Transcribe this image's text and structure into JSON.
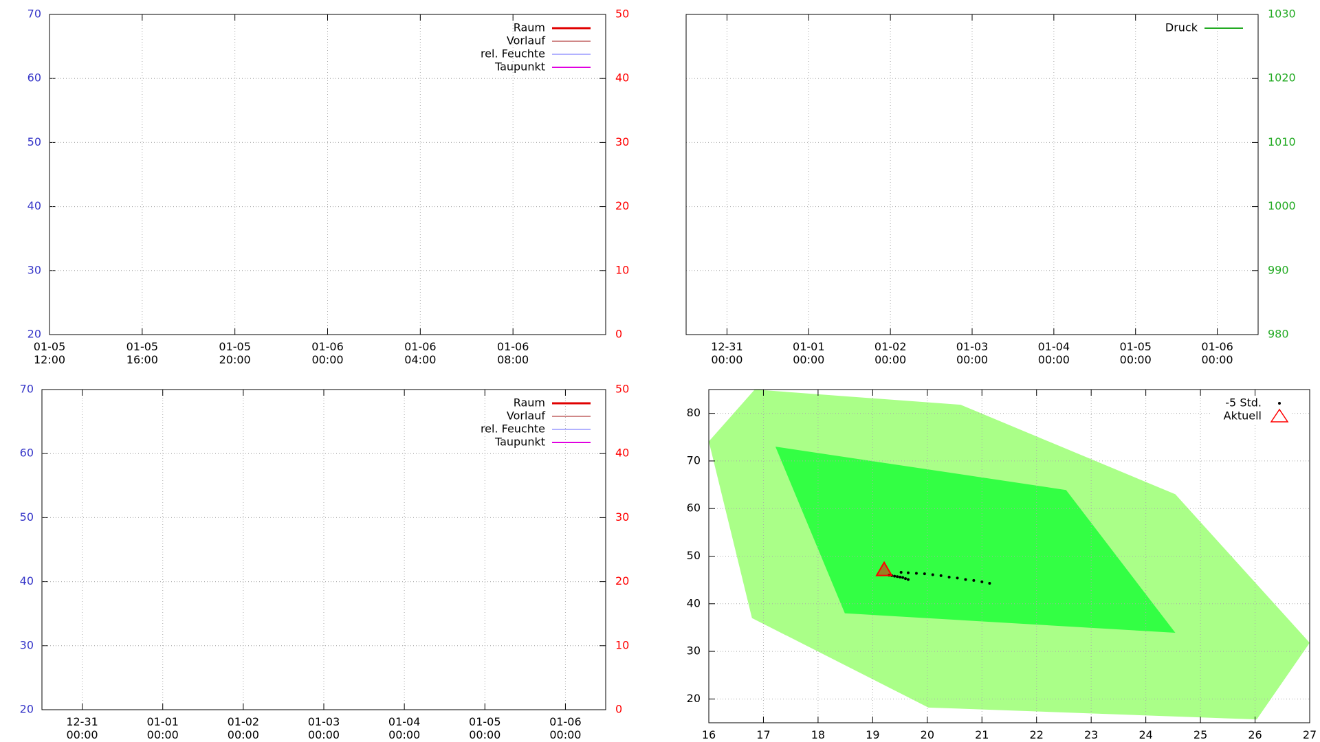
{
  "chart_data": [
    {
      "type": "line",
      "xlim": [
        "01-05 12:00",
        "01-06 12:00"
      ],
      "xticks": [
        "01-05\n12:00",
        "01-05\n16:00",
        "01-05\n20:00",
        "01-06\n00:00",
        "01-06\n04:00",
        "01-06\n08:00"
      ],
      "ylim": [
        20,
        70
      ],
      "yticks": [
        20,
        30,
        40,
        50,
        60,
        70
      ],
      "ytick_color": "#3535c8",
      "y2lim": [
        0,
        50
      ],
      "y2ticks": [
        0,
        10,
        20,
        30,
        40,
        50
      ],
      "y2tick_color": "#ff0000",
      "grid": true,
      "legend": "upper right",
      "series": [
        {
          "name": "Raum",
          "color": "#e00000",
          "width": 3,
          "axis": "y2",
          "x": [],
          "values": []
        },
        {
          "name": "Vorlauf",
          "color": "#a01010",
          "width": 1,
          "axis": "y2",
          "x": [],
          "values": []
        },
        {
          "name": "rel. Feuchte",
          "color": "#9999ff",
          "width": 1.5,
          "x": [],
          "values": []
        },
        {
          "name": "Taupunkt",
          "color": "#e000e0",
          "width": 2,
          "axis": "y2",
          "x": [],
          "values": []
        }
      ]
    },
    {
      "type": "line",
      "xlim": [
        "12-30 12:00",
        "01-06 12:00"
      ],
      "xticks": [
        "12-31\n00:00",
        "01-01\n00:00",
        "01-02\n00:00",
        "01-03\n00:00",
        "01-04\n00:00",
        "01-05\n00:00",
        "01-06\n00:00"
      ],
      "y2lim": [
        980,
        1030
      ],
      "y2ticks": [
        980,
        990,
        1000,
        1010,
        1020,
        1030
      ],
      "y2tick_color": "#22aa22",
      "grid": true,
      "legend": "upper right",
      "series": [
        {
          "name": "Druck",
          "color": "#22aa22",
          "width": 2,
          "axis": "y2",
          "x": [],
          "values": []
        }
      ]
    },
    {
      "type": "line",
      "xlim": [
        "12-30 12:00",
        "01-06 12:00"
      ],
      "xticks": [
        "12-31\n00:00",
        "01-01\n00:00",
        "01-02\n00:00",
        "01-03\n00:00",
        "01-04\n00:00",
        "01-05\n00:00",
        "01-06\n00:00"
      ],
      "ylim": [
        20,
        70
      ],
      "yticks": [
        20,
        30,
        40,
        50,
        60,
        70
      ],
      "ytick_color": "#3535c8",
      "y2lim": [
        0,
        50
      ],
      "y2ticks": [
        0,
        10,
        20,
        30,
        40,
        50
      ],
      "y2tick_color": "#ff0000",
      "grid": true,
      "legend": "upper right",
      "series": [
        {
          "name": "Raum",
          "color": "#e00000",
          "width": 3,
          "axis": "y2",
          "x": [],
          "values": []
        },
        {
          "name": "Vorlauf",
          "color": "#a01010",
          "width": 1,
          "axis": "y2",
          "x": [],
          "values": []
        },
        {
          "name": "rel. Feuchte",
          "color": "#9999ff",
          "width": 1.5,
          "x": [],
          "values": []
        },
        {
          "name": "Taupunkt",
          "color": "#e000e0",
          "width": 2,
          "axis": "y2",
          "x": [],
          "values": []
        }
      ]
    },
    {
      "type": "scatter",
      "xlim": [
        16,
        27
      ],
      "xticks": [
        16,
        17,
        18,
        19,
        20,
        21,
        22,
        23,
        24,
        25,
        26,
        27
      ],
      "ylim": [
        15,
        85
      ],
      "yticks": [
        20,
        30,
        40,
        50,
        60,
        70,
        80
      ],
      "ytick_color": "#000000",
      "grid": true,
      "legend": "upper right",
      "regions": [
        {
          "color": "#aaff88",
          "x": [
            16,
            16.84,
            20.61,
            24.54,
            27,
            26.03,
            20.02,
            16.79
          ],
          "y": [
            74.1,
            85,
            81.8,
            63.0,
            31.8,
            15.7,
            18.2,
            37.0
          ]
        },
        {
          "color": "#33ff44",
          "x": [
            17.22,
            22.54,
            24.54,
            18.49
          ],
          "y": [
            73.0,
            63.9,
            33.9,
            38.0
          ]
        }
      ],
      "series": [
        {
          "name": "-5 Std.",
          "color": "#000000",
          "marker": "dot",
          "x": [
            19.3,
            19.35,
            19.4,
            19.45,
            19.5,
            19.55,
            19.6,
            19.65,
            19.52,
            19.65,
            19.8,
            19.95,
            20.1,
            20.25,
            20.4,
            20.55,
            20.7,
            20.85,
            21.0,
            21.14
          ],
          "values": [
            46.0,
            45.9,
            45.8,
            45.7,
            45.6,
            45.5,
            45.3,
            45.1,
            46.6,
            46.5,
            46.4,
            46.3,
            46.1,
            45.9,
            45.6,
            45.4,
            45.1,
            44.9,
            44.6,
            44.3
          ]
        },
        {
          "name": "Aktuell",
          "color": "#ff0000",
          "marker": "triangle",
          "x": [
            19.21
          ],
          "values": [
            47.1
          ]
        }
      ]
    }
  ]
}
